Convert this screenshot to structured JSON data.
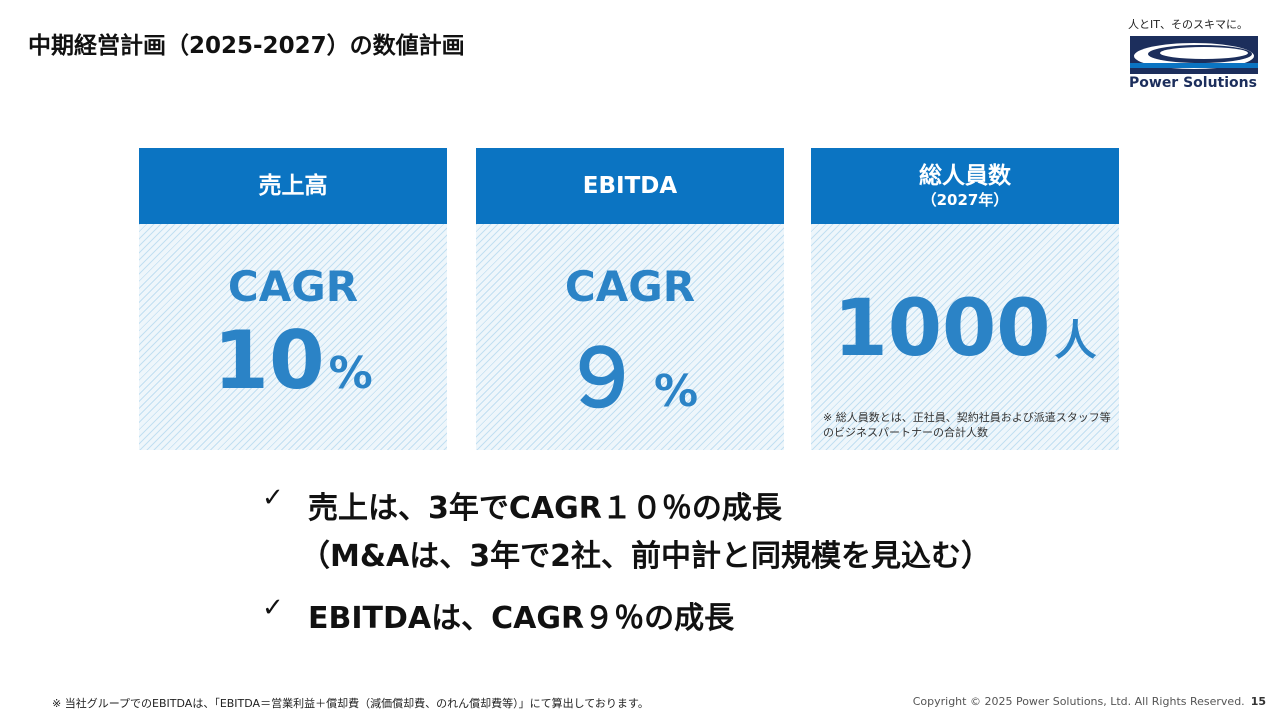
{
  "title": "中期経営計画（2025-2027）の数値計画",
  "logo": {
    "tagline": "人とIT、そのスキマに。",
    "name": "Power Solutions"
  },
  "cards": [
    {
      "header": "売上高",
      "header_sub": "",
      "label": "CAGR",
      "value": "10",
      "unit": "%",
      "note": ""
    },
    {
      "header": "EBITDA",
      "header_sub": "",
      "label": "CAGR",
      "value": "９",
      "unit": "%",
      "note": ""
    },
    {
      "header": "総人員数",
      "header_sub": "（2027年）",
      "label": "",
      "value": "1000",
      "unit": "人",
      "note": "※ 総人員数とは、正社員、契約社員および派遣スタッフ等のビジネスパートナーの合計人数"
    }
  ],
  "bullets": [
    {
      "check": "✓",
      "line1": "売上は、3年でCAGR１０％の成長",
      "line2": "（M&Aは、3年で2社、前中計と同規模を見込む）"
    },
    {
      "check": "✓",
      "line1": "EBITDAは、CAGR９％の成長"
    }
  ],
  "footnote": "※ 当社グループでのEBITDAは、「EBITDA＝営業利益＋償却費（減価償却費、のれん償却費等）」にて算出しております。",
  "copyright": "Copyright © 2025 Power Solutions, Ltd. All Rights Reserved.",
  "page_number": "15",
  "colors": {
    "header_blue": "#0b74c2",
    "value_blue": "#2b83c6",
    "logo_navy": "#1c2e5c"
  }
}
